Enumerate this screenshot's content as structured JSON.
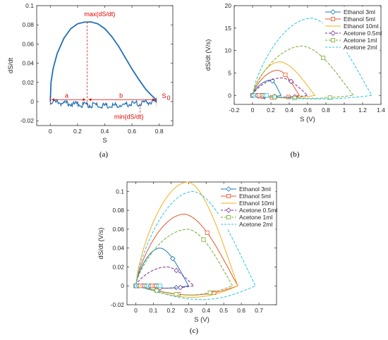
{
  "colors": {
    "panel_a_line": "#1f6fb5",
    "annotation": "#e00000",
    "series": [
      "#1f77b4",
      "#e8562a",
      "#f2b01e",
      "#7e2f8e",
      "#77ac30",
      "#2dc6e6"
    ]
  },
  "chart_data": [
    {
      "type": "line",
      "panel": "a",
      "caption": "(a)",
      "xlabel": "S",
      "ylabel": "dS/dt",
      "xlim": [
        -0.1,
        0.9
      ],
      "ylim": [
        -0.025,
        0.1
      ],
      "xticks": [
        "0",
        "0.2",
        "0.4",
        "0.6",
        "0.8"
      ],
      "yticks": [
        "-0.02",
        "0",
        "0.02",
        "0.04",
        "0.06",
        "0.08",
        "0.1"
      ],
      "grid": false,
      "annotations": {
        "max_label": "max(dS/dt)",
        "min_label": "min(dS/dt)",
        "a_label": "a",
        "b_label": "b",
        "s0_label": "S",
        "s0_sub": "0",
        "max_x": 0.27,
        "max_y": 0.083,
        "min_x": 0.66,
        "end_x": 0.78,
        "arrow_y": 0.002
      },
      "series": [
        {
          "upper": [
            [
              0,
              0
            ],
            [
              0.005,
              0.02
            ],
            [
              0.02,
              0.034
            ],
            [
              0.05,
              0.05
            ],
            [
              0.1,
              0.066
            ],
            [
              0.15,
              0.076
            ],
            [
              0.2,
              0.081
            ],
            [
              0.25,
              0.0828
            ],
            [
              0.3,
              0.083
            ],
            [
              0.35,
              0.081
            ],
            [
              0.4,
              0.076
            ],
            [
              0.45,
              0.068
            ],
            [
              0.5,
              0.058
            ],
            [
              0.55,
              0.046
            ],
            [
              0.6,
              0.034
            ],
            [
              0.65,
              0.023
            ],
            [
              0.7,
              0.013
            ],
            [
              0.74,
              0.007
            ],
            [
              0.77,
              0.003
            ],
            [
              0.78,
              0
            ]
          ],
          "lower": [
            [
              0.78,
              0
            ],
            [
              0.77,
              -0.001
            ],
            [
              0.7,
              -0.002
            ],
            [
              0.6,
              -0.003
            ],
            [
              0.5,
              -0.004
            ],
            [
              0.4,
              -0.0045
            ],
            [
              0.3,
              -0.004
            ],
            [
              0.2,
              -0.003
            ],
            [
              0.1,
              -0.0025
            ],
            [
              0.05,
              -0.0015
            ],
            [
              0,
              0
            ]
          ]
        }
      ]
    },
    {
      "type": "line",
      "panel": "b",
      "caption": "(b)",
      "xlabel": "S (V)",
      "ylabel": "dS/dt (V/s)",
      "xlim": [
        -0.2,
        1.4
      ],
      "ylim": [
        -2,
        20
      ],
      "xticks": [
        "-0.2",
        "0",
        "0.2",
        "0.4",
        "0.6",
        "0.8",
        "1",
        "1.2",
        "1.4"
      ],
      "yticks": [
        "0",
        "5",
        "10",
        "15",
        "20"
      ],
      "legend": "top-right",
      "grid": false,
      "series": [
        {
          "name": "Ethanol 3ml",
          "xmax": 0.31,
          "peakx": 0.2,
          "peaky": 3.4,
          "miny": -0.4,
          "marker": "diamond",
          "dash": "solid"
        },
        {
          "name": "Ethanol 5ml",
          "xmax": 0.51,
          "peakx": 0.28,
          "peaky": 5.6,
          "miny": -0.6,
          "marker": "square",
          "dash": "solid"
        },
        {
          "name": "Ethanol 10ml",
          "xmax": 0.68,
          "peakx": 0.3,
          "peaky": 7.5,
          "miny": -0.7,
          "marker": "none",
          "dash": "solid"
        },
        {
          "name": "Acetone 0.5ml",
          "xmax": 0.6,
          "peakx": 0.32,
          "peaky": 3.9,
          "miny": -0.5,
          "marker": "diamond",
          "dash": "dashed"
        },
        {
          "name": "Acetone 1ml",
          "xmax": 1.1,
          "peakx": 0.55,
          "peaky": 11.0,
          "miny": -0.8,
          "marker": "square",
          "dash": "dashed"
        },
        {
          "name": "Acetone 2ml",
          "xmax": 1.3,
          "peakx": 0.65,
          "peaky": 17.2,
          "miny": -1.0,
          "marker": "none",
          "dash": "dashed"
        }
      ]
    },
    {
      "type": "line",
      "panel": "c",
      "caption": "(c)",
      "xlabel": "S (V)",
      "ylabel": "dS/dt (V/s)",
      "xlim": [
        -0.05,
        0.8
      ],
      "ylim": [
        -0.02,
        0.11
      ],
      "xticks": [
        "0",
        "0.1",
        "0.2",
        "0.3",
        "0.4",
        "0.5",
        "0.6",
        "0.7"
      ],
      "yticks": [
        "-0.02",
        "0",
        "0.02",
        "0.04",
        "0.06",
        "0.08",
        "0.1"
      ],
      "legend": "top-right",
      "grid": false,
      "series": [
        {
          "name": "Ethanol 3ml",
          "xmax": 0.3,
          "peakx": 0.14,
          "peaky": 0.04,
          "miny": -0.003,
          "marker": "diamond",
          "dash": "solid"
        },
        {
          "name": "Ethanol 5ml",
          "xmax": 0.58,
          "peakx": 0.28,
          "peaky": 0.076,
          "miny": -0.012,
          "marker": "square",
          "dash": "solid"
        },
        {
          "name": "Ethanol 10ml",
          "xmax": 0.58,
          "peakx": 0.3,
          "peaky": 0.11,
          "miny": -0.015,
          "marker": "none",
          "dash": "solid"
        },
        {
          "name": "Acetone 0.5ml",
          "xmax": 0.33,
          "peakx": 0.18,
          "peaky": 0.02,
          "miny": -0.003,
          "marker": "diamond",
          "dash": "dashed"
        },
        {
          "name": "Acetone 1ml",
          "xmax": 0.55,
          "peakx": 0.3,
          "peaky": 0.06,
          "miny": -0.012,
          "marker": "square",
          "dash": "dashed"
        },
        {
          "name": "Acetone 2ml",
          "xmax": 0.68,
          "peakx": 0.33,
          "peaky": 0.1,
          "miny": -0.018,
          "marker": "none",
          "dash": "dashed"
        }
      ]
    }
  ]
}
